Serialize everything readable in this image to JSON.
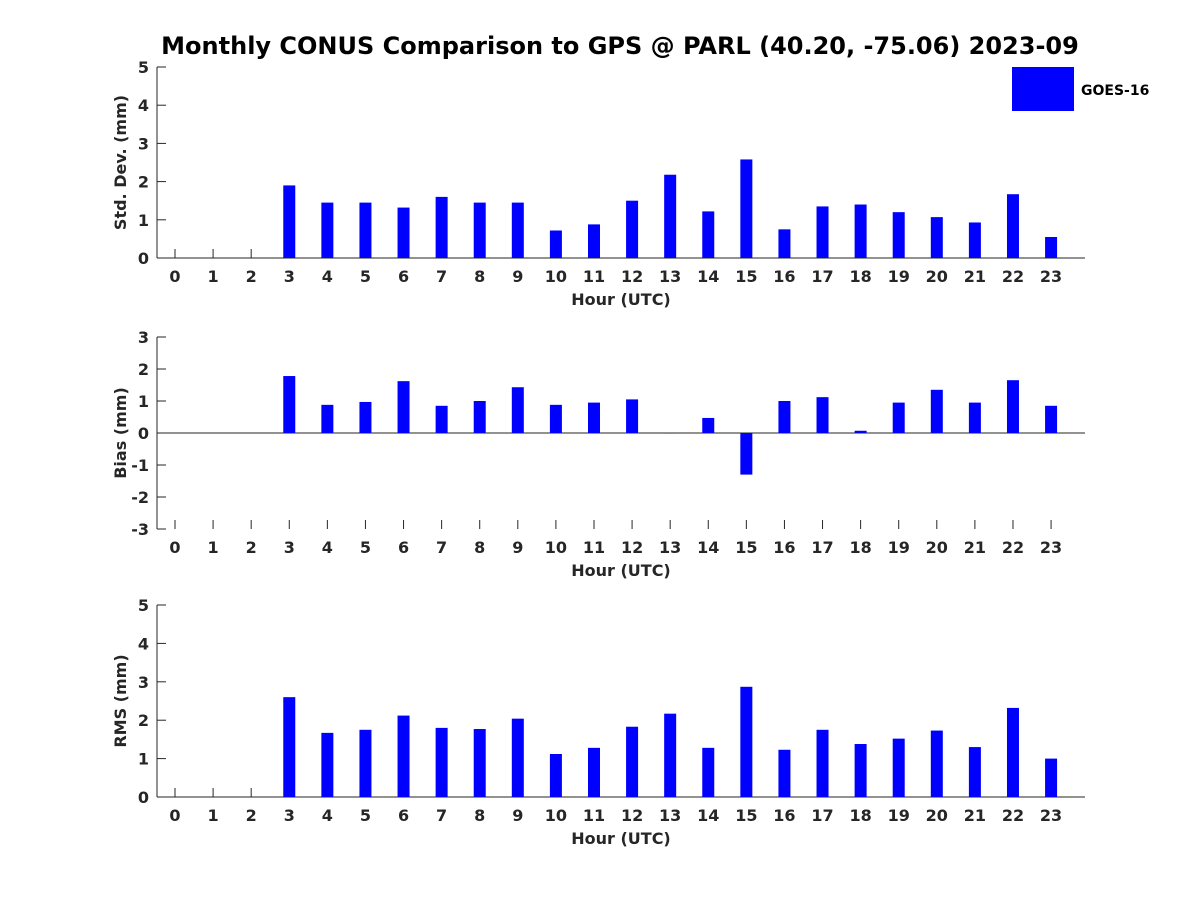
{
  "figure": {
    "title": "Monthly CONUS Comparison to GPS @ PARL (40.20, -75.06) 2023-09",
    "legend": {
      "label": "GOES-16",
      "color": "#0000FF",
      "placement": "top-right"
    }
  },
  "chart_data": [
    {
      "type": "bar",
      "title": "Monthly CONUS Comparison to GPS @ PARL (40.20, -75.06) 2023-09",
      "xlabel": "Hour (UTC)",
      "ylabel": "Std. Dev. (mm)",
      "ylim": [
        0,
        5
      ],
      "yticks": [
        0,
        1,
        2,
        3,
        4,
        5
      ],
      "categories": [
        "0",
        "1",
        "2",
        "3",
        "4",
        "5",
        "6",
        "7",
        "8",
        "9",
        "10",
        "11",
        "12",
        "13",
        "14",
        "15",
        "16",
        "17",
        "18",
        "19",
        "20",
        "21",
        "22",
        "23"
      ],
      "series": [
        {
          "name": "GOES-16",
          "color": "#0000FF",
          "values": [
            null,
            null,
            null,
            1.9,
            1.45,
            1.45,
            1.32,
            1.6,
            1.45,
            1.45,
            0.72,
            0.88,
            1.5,
            2.18,
            1.22,
            2.58,
            0.75,
            1.35,
            1.4,
            1.2,
            1.07,
            0.93,
            1.67,
            0.55
          ]
        }
      ],
      "grid": false
    },
    {
      "type": "bar",
      "xlabel": "Hour (UTC)",
      "ylabel": "Bias (mm)",
      "ylim": [
        -3,
        3
      ],
      "yticks": [
        -3,
        -2,
        -1,
        0,
        1,
        2,
        3
      ],
      "categories": [
        "0",
        "1",
        "2",
        "3",
        "4",
        "5",
        "6",
        "7",
        "8",
        "9",
        "10",
        "11",
        "12",
        "13",
        "14",
        "15",
        "16",
        "17",
        "18",
        "19",
        "20",
        "21",
        "22",
        "23"
      ],
      "series": [
        {
          "name": "GOES-16",
          "color": "#0000FF",
          "values": [
            null,
            null,
            null,
            1.78,
            0.88,
            0.97,
            1.62,
            0.85,
            1.0,
            1.43,
            0.88,
            0.95,
            1.05,
            0.0,
            0.47,
            -1.3,
            1.0,
            1.12,
            0.07,
            0.95,
            1.35,
            0.95,
            1.65,
            0.85
          ]
        }
      ],
      "grid": false
    },
    {
      "type": "bar",
      "xlabel": "Hour (UTC)",
      "ylabel": "RMS (mm)",
      "ylim": [
        0,
        5
      ],
      "yticks": [
        0,
        1,
        2,
        3,
        4,
        5
      ],
      "categories": [
        "0",
        "1",
        "2",
        "3",
        "4",
        "5",
        "6",
        "7",
        "8",
        "9",
        "10",
        "11",
        "12",
        "13",
        "14",
        "15",
        "16",
        "17",
        "18",
        "19",
        "20",
        "21",
        "22",
        "23"
      ],
      "series": [
        {
          "name": "GOES-16",
          "color": "#0000FF",
          "values": [
            null,
            null,
            null,
            2.6,
            1.67,
            1.75,
            2.12,
            1.8,
            1.77,
            2.04,
            1.12,
            1.28,
            1.83,
            2.17,
            1.28,
            2.87,
            1.23,
            1.75,
            1.38,
            1.52,
            1.73,
            1.3,
            2.32,
            1.0
          ]
        }
      ],
      "grid": false
    }
  ]
}
